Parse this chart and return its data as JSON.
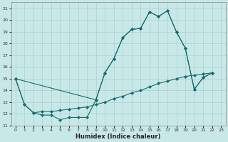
{
  "xlabel": "Humidex (Indice chaleur)",
  "bg_color": "#c8e8e8",
  "line_color": "#1a6b6b",
  "grid_color": "#aacfcf",
  "xlim": [
    -0.5,
    23.5
  ],
  "ylim": [
    11,
    21.5
  ],
  "yticks": [
    11,
    12,
    13,
    14,
    15,
    16,
    17,
    18,
    19,
    20,
    21
  ],
  "xticks": [
    0,
    1,
    2,
    3,
    4,
    5,
    6,
    7,
    8,
    9,
    10,
    11,
    12,
    13,
    14,
    15,
    16,
    17,
    18,
    19,
    20,
    21,
    22,
    23
  ],
  "series": [
    {
      "x": [
        0,
        1,
        2,
        3,
        4,
        5,
        6,
        7,
        8,
        9,
        10,
        11,
        12,
        13,
        14,
        15,
        16,
        17,
        18,
        19,
        20,
        21,
        22
      ],
      "y": [
        15.0,
        12.8,
        12.1,
        11.9,
        11.9,
        11.5,
        11.7,
        11.7,
        11.7,
        13.2,
        15.5,
        16.7,
        18.5,
        19.2,
        19.3,
        20.7,
        20.3,
        20.8,
        19.0,
        17.6,
        14.1,
        15.1,
        15.5
      ]
    },
    {
      "x": [
        0,
        9,
        10,
        11,
        12,
        13,
        14,
        15,
        16,
        17,
        18,
        19,
        20,
        21,
        22
      ],
      "y": [
        15.0,
        13.2,
        15.5,
        16.7,
        18.5,
        19.2,
        19.3,
        20.7,
        20.3,
        20.8,
        19.0,
        17.6,
        14.1,
        15.1,
        15.5
      ]
    },
    {
      "x": [
        0,
        1,
        2,
        3,
        4,
        5,
        6,
        7,
        8,
        9,
        10,
        11,
        12,
        13,
        14,
        15,
        16,
        17,
        18,
        19,
        20,
        21,
        22
      ],
      "y": [
        15.0,
        12.8,
        12.1,
        12.2,
        12.2,
        12.3,
        12.4,
        12.5,
        12.6,
        12.8,
        13.0,
        13.3,
        13.5,
        13.8,
        14.0,
        14.3,
        14.6,
        14.8,
        15.0,
        15.2,
        15.3,
        15.4,
        15.5
      ]
    }
  ]
}
